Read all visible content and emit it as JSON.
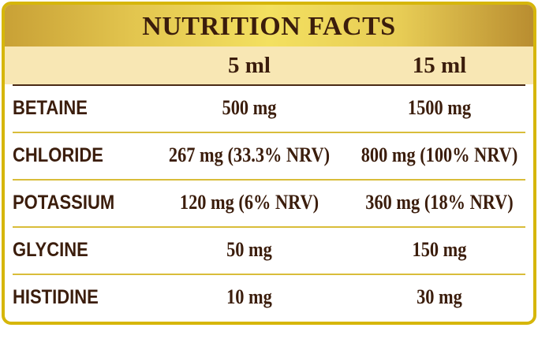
{
  "title": "NUTRITION FACTS",
  "columns": [
    "5 ml",
    "15 ml"
  ],
  "rows": [
    {
      "name": "BETAINE",
      "v1": "500 mg",
      "v2": "1500 mg"
    },
    {
      "name": "CHLORIDE",
      "v1": "267 mg (33.3% NRV)",
      "v2": "800 mg (100% NRV)"
    },
    {
      "name": "POTASSIUM",
      "v1": "120 mg (6% NRV)",
      "v2": "360 mg (18% NRV)"
    },
    {
      "name": "GLYCINE",
      "v1": "50 mg",
      "v2": "150 mg"
    },
    {
      "name": "HISTIDINE",
      "v1": "10 mg",
      "v2": "30 mg"
    }
  ],
  "colors": {
    "border": "#d6b60a",
    "text": "#3b1d0c",
    "subheader": "#f8e7b4",
    "separator": "#d9bd3a"
  }
}
